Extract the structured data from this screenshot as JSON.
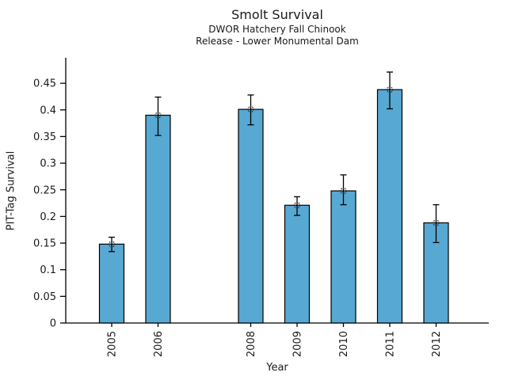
{
  "header": {
    "title": "Smolt Survival",
    "subtitle_line1": "DWOR Hatchery Fall Chinook",
    "subtitle_line2": "Release - Lower Monumental Dam"
  },
  "axes": {
    "xlabel": "Year",
    "ylabel": "PIT-Tag Survival"
  },
  "colors": {
    "bar_fill": "#57a8d2",
    "bar_edge": "#000000",
    "axis_line": "#000000",
    "error_bar": "#000000",
    "marker_stroke": "#333333",
    "background": "#ffffff"
  },
  "chart_data": {
    "type": "bar",
    "title": "Smolt Survival",
    "subtitle": [
      "DWOR Hatchery Fall Chinook",
      "Release - Lower Monumental Dam"
    ],
    "xlabel": "Year",
    "ylabel": "PIT-Tag Survival",
    "categories": [
      "2005",
      "2006",
      "2008",
      "2009",
      "2010",
      "2011",
      "2012"
    ],
    "values": [
      0.148,
      0.39,
      0.401,
      0.221,
      0.248,
      0.438,
      0.188
    ],
    "error_low": [
      0.134,
      0.352,
      0.372,
      0.202,
      0.222,
      0.402,
      0.151
    ],
    "error_high": [
      0.161,
      0.424,
      0.428,
      0.237,
      0.278,
      0.471,
      0.222
    ],
    "slots": [
      0,
      1,
      3,
      4,
      5,
      6,
      7
    ],
    "missing_categories": [
      "2007"
    ],
    "marker": "open-circle",
    "error_bars": true,
    "grid": false,
    "legend": null,
    "ylim": [
      0,
      0.5
    ],
    "yticks": [
      {
        "v": 0,
        "label": "0"
      },
      {
        "v": 0.05,
        "label": "0.05"
      },
      {
        "v": 0.1,
        "label": "0.1"
      },
      {
        "v": 0.15,
        "label": "0.15"
      },
      {
        "v": 0.2,
        "label": "0.2"
      },
      {
        "v": 0.25,
        "label": "0.25"
      },
      {
        "v": 0.3,
        "label": "0.3"
      },
      {
        "v": 0.35,
        "label": "0.35"
      },
      {
        "v": 0.4,
        "label": "0.4"
      },
      {
        "v": 0.45,
        "label": "0.45"
      }
    ]
  }
}
